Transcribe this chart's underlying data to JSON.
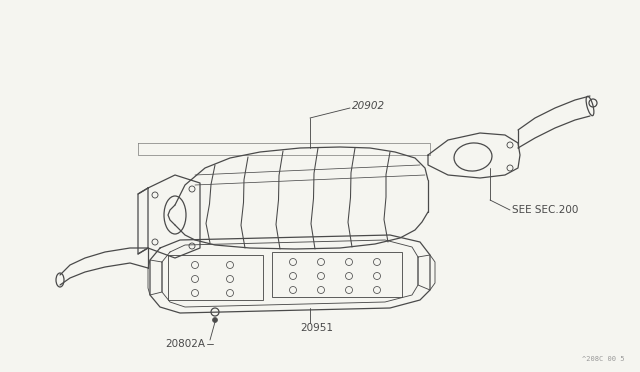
{
  "bg_color": "#f5f5f0",
  "line_color": "#4a4a4a",
  "text_color": "#4a4a4a",
  "fig_width": 6.4,
  "fig_height": 3.72,
  "dpi": 100,
  "watermark": "^208C 00 5",
  "label_20902": "20902",
  "label_20802a": "20802A",
  "label_20951": "20951",
  "label_see_sec": "SEE SEC.200",
  "lw": 0.9
}
